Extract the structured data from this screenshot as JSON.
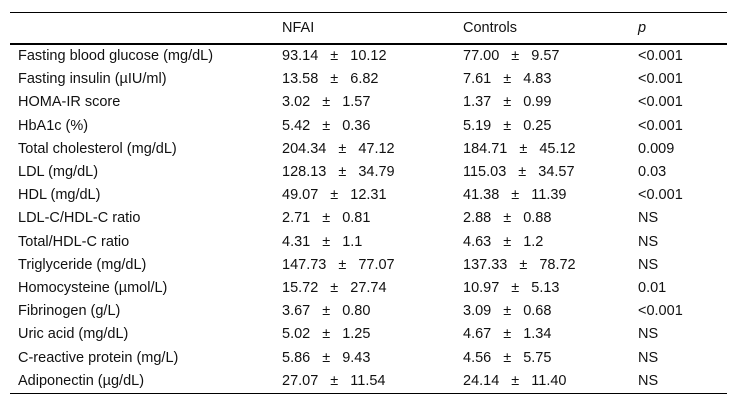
{
  "table": {
    "headers": {
      "parameter": "",
      "nfai": "NFAI",
      "controls": "Controls",
      "p": "p"
    },
    "plus_minus": "±",
    "rows": [
      {
        "label": "Fasting blood glucose (mg/dL)",
        "nfai": {
          "mean": "93.14",
          "sd": "10.12"
        },
        "controls": {
          "mean": "77.00",
          "sd": "9.57"
        },
        "p": "<0.001"
      },
      {
        "label": "Fasting insulin (µIU/ml)",
        "nfai": {
          "mean": "13.58",
          "sd": "6.82"
        },
        "controls": {
          "mean": "7.61",
          "sd": "4.83"
        },
        "p": "<0.001"
      },
      {
        "label": "HOMA-IR score",
        "nfai": {
          "mean": "3.02",
          "sd": "1.57"
        },
        "controls": {
          "mean": "1.37",
          "sd": "0.99"
        },
        "p": "<0.001"
      },
      {
        "label": "HbA1c (%)",
        "nfai": {
          "mean": "5.42",
          "sd": "0.36"
        },
        "controls": {
          "mean": "5.19",
          "sd": "0.25"
        },
        "p": "<0.001"
      },
      {
        "label": "Total cholesterol (mg/dL)",
        "nfai": {
          "mean": "204.34",
          "sd": "47.12"
        },
        "controls": {
          "mean": "184.71",
          "sd": "45.12"
        },
        "p": "0.009"
      },
      {
        "label": "LDL (mg/dL)",
        "nfai": {
          "mean": "128.13",
          "sd": "34.79"
        },
        "controls": {
          "mean": "115.03",
          "sd": "34.57"
        },
        "p": "0.03"
      },
      {
        "label": "HDL (mg/dL)",
        "nfai": {
          "mean": "49.07",
          "sd": "12.31"
        },
        "controls": {
          "mean": "41.38",
          "sd": "11.39"
        },
        "p": "<0.001"
      },
      {
        "label": "LDL-C/HDL-C ratio",
        "nfai": {
          "mean": "2.71",
          "sd": "0.81"
        },
        "controls": {
          "mean": "2.88",
          "sd": "0.88"
        },
        "p": "NS"
      },
      {
        "label": "Total/HDL-C ratio",
        "nfai": {
          "mean": "4.31",
          "sd": "1.1"
        },
        "controls": {
          "mean": "4.63",
          "sd": "1.2"
        },
        "p": "NS"
      },
      {
        "label": "Triglyceride (mg/dL)",
        "nfai": {
          "mean": "147.73",
          "sd": "77.07"
        },
        "controls": {
          "mean": "137.33",
          "sd": "78.72"
        },
        "p": "NS"
      },
      {
        "label": "Homocysteine (µmol/L)",
        "nfai": {
          "mean": "15.72",
          "sd": "27.74"
        },
        "controls": {
          "mean": "10.97",
          "sd": "5.13"
        },
        "p": "0.01"
      },
      {
        "label": "Fibrinogen (g/L)",
        "nfai": {
          "mean": "3.67",
          "sd": "0.80"
        },
        "controls": {
          "mean": "3.09",
          "sd": "0.68"
        },
        "p": "<0.001"
      },
      {
        "label": "Uric acid (mg/dL)",
        "nfai": {
          "mean": "5.02",
          "sd": "1.25"
        },
        "controls": {
          "mean": "4.67",
          "sd": "1.34"
        },
        "p": "NS"
      },
      {
        "label": "C-reactive protein (mg/L)",
        "nfai": {
          "mean": "5.86",
          "sd": "9.43"
        },
        "controls": {
          "mean": "4.56",
          "sd": "5.75"
        },
        "p": "NS"
      },
      {
        "label": "Adiponectin (µg/dL)",
        "nfai": {
          "mean": "27.07",
          "sd": "11.54"
        },
        "controls": {
          "mean": "24.14",
          "sd": "11.40"
        },
        "p": "NS"
      }
    ]
  }
}
